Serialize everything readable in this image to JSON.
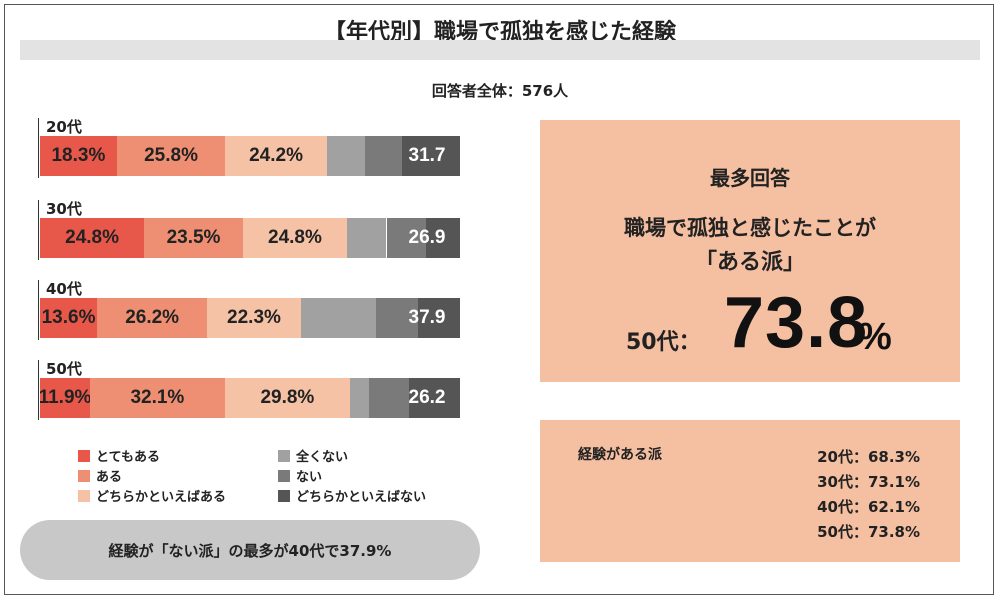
{
  "header": {
    "title": "【年代別】職場で孤独を感じた経験",
    "respondents": "回答者全体：576人"
  },
  "colors": {
    "totemo_aru": "#e8584a",
    "aru": "#ee8f73",
    "dochira_aru": "#f5c2a6",
    "mattaku_nai": "#a1a1a1",
    "nai": "#7a7a7a",
    "dochira_nai": "#555555",
    "panel": "#f5bfa2"
  },
  "chart_data": {
    "type": "bar",
    "stacked": true,
    "orientation": "horizontal",
    "categories": [
      "20代",
      "30代",
      "40代",
      "50代"
    ],
    "series": [
      {
        "name": "とてもある",
        "values": [
          18.3,
          24.8,
          13.6,
          11.9
        ],
        "labels": [
          "18.3%",
          "24.8%",
          "13.6%",
          "11.9%"
        ],
        "color": "#e8584a"
      },
      {
        "name": "ある",
        "values": [
          25.8,
          23.5,
          26.2,
          32.1
        ],
        "labels": [
          "25.8%",
          "23.5%",
          "26.2%",
          "32.1%"
        ],
        "color": "#ee8f73"
      },
      {
        "name": "どちらかといえばある",
        "values": [
          24.2,
          24.8,
          22.3,
          29.8
        ],
        "labels": [
          "24.2%",
          "24.8%",
          "22.3%",
          "29.8%"
        ],
        "color": "#f5c2a6"
      },
      {
        "name": "全くない",
        "values": [
          9.0,
          9.4,
          17.9,
          4.6
        ],
        "labels": [
          "",
          "",
          "",
          ""
        ],
        "color": "#a1a1a1"
      },
      {
        "name": "ない",
        "values": [
          9.0,
          9.4,
          9.9,
          9.4
        ],
        "labels": [
          "",
          "",
          "",
          ""
        ],
        "color": "#7a7a7a"
      },
      {
        "name": "どちらかといえばない",
        "values": [
          13.7,
          8.1,
          10.1,
          12.2
        ],
        "labels": [
          "",
          "",
          "",
          ""
        ],
        "color": "#555555"
      }
    ],
    "negative_totals": [
      "31.7",
      "26.9",
      "37.9",
      "26.2"
    ],
    "xlim": [
      0,
      100
    ]
  },
  "legend": {
    "left": [
      "とてもある",
      "ある",
      "どちらかといえばある"
    ],
    "right": [
      "全くない",
      "ない",
      "どちらかといえばない"
    ]
  },
  "callout": {
    "text": "経験が「ない派」の最多が40代で37.9%"
  },
  "summary": {
    "heading": "最多回答",
    "line1": "職場で孤独と感じたことが",
    "line2": "「ある派」",
    "age_label": "50代：",
    "value": "73.8",
    "unit": "%"
  },
  "experience": {
    "label": "経験がある派",
    "items": [
      "20代：68.3%",
      "30代：73.1%",
      "40代：62.1%",
      "50代：73.8%"
    ]
  }
}
